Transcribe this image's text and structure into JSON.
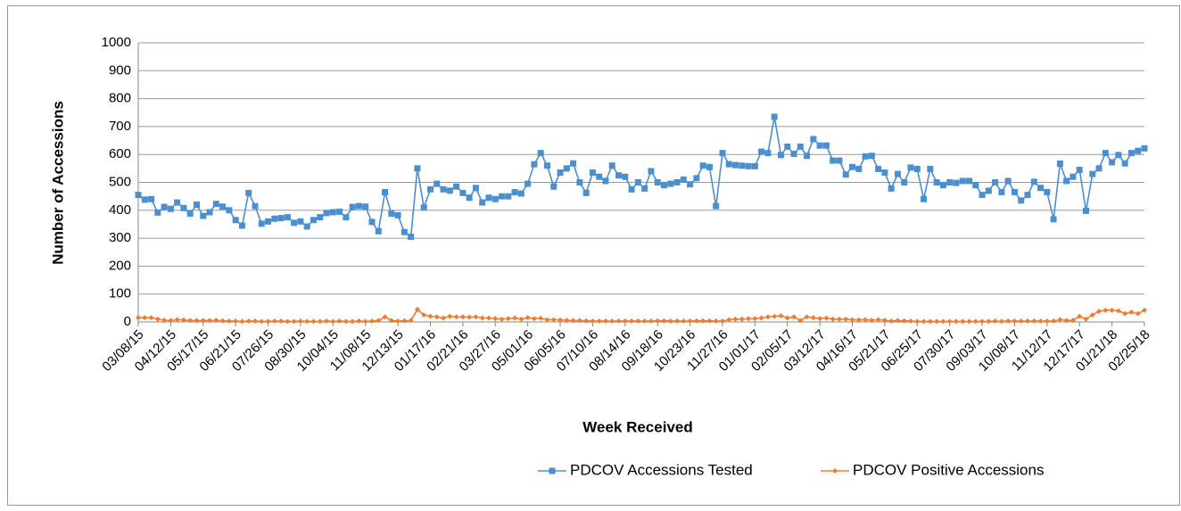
{
  "chart_data": {
    "type": "line",
    "y_label": "Number of Accessions",
    "x_label": "Week Received",
    "categories": [
      "03/08/15",
      null,
      null,
      null,
      null,
      "04/12/15",
      null,
      null,
      null,
      null,
      "05/17/15",
      null,
      null,
      null,
      null,
      "06/21/15",
      null,
      null,
      null,
      null,
      "07/26/15",
      null,
      null,
      null,
      null,
      "08/30/15",
      null,
      null,
      null,
      null,
      "10/04/15",
      null,
      null,
      null,
      null,
      "11/08/15",
      null,
      null,
      null,
      null,
      "12/13/15",
      null,
      null,
      null,
      null,
      "01/17/16",
      null,
      null,
      null,
      null,
      "02/21/16",
      null,
      null,
      null,
      null,
      "03/27/16",
      null,
      null,
      null,
      null,
      "05/01/16",
      null,
      null,
      null,
      null,
      "06/05/16",
      null,
      null,
      null,
      null,
      "07/10/16",
      null,
      null,
      null,
      null,
      "08/14/16",
      null,
      null,
      null,
      null,
      "09/18/16",
      null,
      null,
      null,
      null,
      "10/23/16",
      null,
      null,
      null,
      null,
      "11/27/16",
      null,
      null,
      null,
      null,
      "01/01/17",
      null,
      null,
      null,
      null,
      "02/05/17",
      null,
      null,
      null,
      null,
      "03/12/17",
      null,
      null,
      null,
      null,
      "04/16/17",
      null,
      null,
      null,
      null,
      "05/21/17",
      null,
      null,
      null,
      null,
      "06/25/17",
      null,
      null,
      null,
      null,
      "07/30/17",
      null,
      null,
      null,
      null,
      "09/03/17",
      null,
      null,
      null,
      null,
      "10/08/17",
      null,
      null,
      null,
      null,
      "11/12/17",
      null,
      null,
      null,
      null,
      "12/17/17",
      null,
      null,
      null,
      null,
      "01/21/18",
      null,
      null,
      null,
      null,
      "02/25/18"
    ],
    "series": [
      {
        "name": "PDCOV Accessions Tested",
        "color": "#4a8fcf",
        "marker": "square",
        "values": [
          455,
          438,
          440,
          392,
          412,
          405,
          428,
          408,
          388,
          420,
          380,
          393,
          423,
          413,
          400,
          365,
          345,
          462,
          415,
          352,
          360,
          370,
          372,
          375,
          355,
          360,
          342,
          365,
          375,
          390,
          393,
          395,
          375,
          412,
          415,
          413,
          358,
          325,
          465,
          388,
          382,
          322,
          305,
          550,
          410,
          475,
          495,
          475,
          470,
          485,
          462,
          445,
          480,
          428,
          445,
          440,
          450,
          450,
          465,
          460,
          495,
          565,
          605,
          560,
          485,
          535,
          550,
          568,
          500,
          462,
          535,
          520,
          505,
          560,
          525,
          520,
          475,
          500,
          478,
          540,
          500,
          490,
          495,
          500,
          510,
          493,
          515,
          560,
          555,
          415,
          605,
          565,
          562,
          560,
          558,
          558,
          610,
          605,
          735,
          598,
          628,
          602,
          628,
          595,
          655,
          632,
          632,
          578,
          578,
          528,
          555,
          548,
          593,
          595,
          548,
          535,
          478,
          530,
          500,
          553,
          548,
          440,
          548,
          500,
          490,
          500,
          498,
          505,
          505,
          490,
          455,
          470,
          500,
          465,
          505,
          465,
          435,
          455,
          502,
          480,
          465,
          368,
          567,
          505,
          520,
          545,
          398,
          530,
          550,
          605,
          572,
          598,
          568,
          605,
          613,
          622
        ]
      },
      {
        "name": "PDCOV Positive Accessions",
        "color": "#ed7d31",
        "marker": "diamond",
        "values": [
          15,
          15,
          15,
          10,
          6,
          5,
          8,
          7,
          5,
          5,
          5,
          5,
          6,
          4,
          3,
          3,
          2,
          3,
          3,
          2,
          2,
          3,
          3,
          2,
          2,
          3,
          2,
          2,
          2,
          3,
          2,
          3,
          2,
          2,
          3,
          2,
          3,
          5,
          18,
          5,
          3,
          4,
          5,
          45,
          25,
          20,
          18,
          14,
          20,
          18,
          18,
          17,
          18,
          14,
          14,
          12,
          10,
          12,
          14,
          10,
          15,
          12,
          13,
          8,
          8,
          7,
          6,
          5,
          5,
          4,
          3,
          3,
          3,
          3,
          3,
          3,
          3,
          3,
          3,
          3,
          4,
          4,
          3,
          3,
          3,
          3,
          4,
          4,
          4,
          3,
          3,
          8,
          10,
          10,
          12,
          12,
          14,
          18,
          20,
          22,
          14,
          18,
          5,
          18,
          15,
          12,
          14,
          10,
          10,
          10,
          8,
          7,
          8,
          6,
          8,
          6,
          3,
          5,
          4,
          3,
          2,
          2,
          2,
          2,
          2,
          2,
          2,
          2,
          2,
          2,
          2,
          2,
          3,
          2,
          3,
          3,
          3,
          3,
          3,
          3,
          3,
          3,
          8,
          5,
          6,
          20,
          10,
          25,
          38,
          42,
          42,
          40,
          30,
          35,
          30,
          42
        ]
      }
    ],
    "ylim": [
      0,
      1000
    ],
    "yticks": [
      0,
      100,
      200,
      300,
      400,
      500,
      600,
      700,
      800,
      900,
      1000
    ],
    "grid": true,
    "legend": "bottom"
  }
}
